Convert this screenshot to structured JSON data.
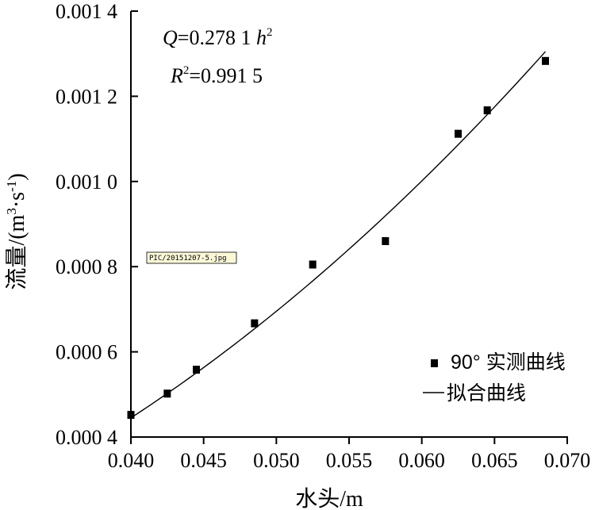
{
  "chart_data": {
    "type": "scatter",
    "xlabel": "水头/m",
    "ylabel": "流量/(m",
    "ylabel_sup1": "3",
    "ylabel_mid": "·s",
    "ylabel_sup2": "-1",
    "ylabel_end": ")",
    "xlim": [
      0.04,
      0.07
    ],
    "ylim": [
      0.0004,
      0.0014
    ],
    "x_ticks": [
      "0.040",
      "0.045",
      "0.050",
      "0.055",
      "0.060",
      "0.065",
      "0.070"
    ],
    "y_ticks": [
      "0.000 4",
      "0.000 6",
      "0.000 8",
      "0.001 0",
      "0.001 2",
      "0.001 4"
    ],
    "series": [
      {
        "name": "90° 实测曲线",
        "type": "scatter",
        "x": [
          0.04,
          0.0425,
          0.0445,
          0.0485,
          0.0525,
          0.0575,
          0.0625,
          0.0645,
          0.0685
        ],
        "y": [
          0.000452,
          0.000502,
          0.000558,
          0.000667,
          0.000805,
          0.00086,
          0.001112,
          0.001167,
          0.001283
        ]
      },
      {
        "name": "拟合曲线",
        "type": "line",
        "formula": "Q=0.2781*h^2",
        "coefficient": 0.2781,
        "x_range": [
          0.04,
          0.0685
        ]
      }
    ],
    "equation": {
      "q_var": "Q",
      "q_rhs": "=0.278 1 ",
      "h_var": "h",
      "h_exp": "2",
      "r_var": "R",
      "r_exp": "2",
      "r_rhs": "=0.991 5"
    },
    "legend": {
      "position": "bottom-right",
      "items": [
        {
          "marker": "square",
          "label": "90° 实测曲线"
        },
        {
          "marker": "line",
          "label": "拟合曲线"
        }
      ]
    },
    "grid": false
  },
  "file_label": "PIC/20151207-5.jpg",
  "colors": {
    "axis": "#000000",
    "marker": "#000000",
    "background": "#ffffff"
  }
}
